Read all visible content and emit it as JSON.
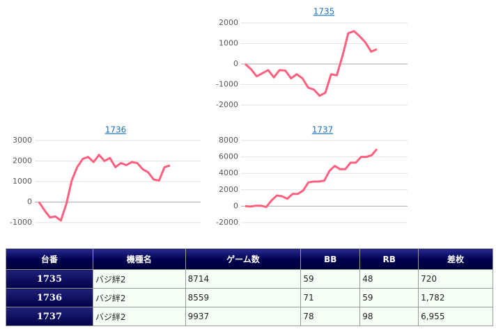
{
  "chart_data": [
    {
      "type": "line",
      "title": "1735",
      "color": "#ff5f7e",
      "grid": true,
      "values": [
        0,
        -250,
        -600,
        -450,
        -300,
        -650,
        -300,
        -320,
        -700,
        -500,
        -700,
        -1150,
        -1250,
        -1550,
        -1400,
        -500,
        -550,
        400,
        1500,
        1600,
        1350,
        1050,
        600,
        720
      ],
      "ylim": [
        -2000,
        2000
      ],
      "yticks": [
        -2000,
        -1000,
        0,
        1000,
        2000
      ]
    },
    {
      "type": "line",
      "title": "1736",
      "color": "#ff5f7e",
      "grid": true,
      "values": [
        0,
        -400,
        -750,
        -700,
        -900,
        -100,
        1050,
        1700,
        2100,
        2200,
        1950,
        2300,
        2000,
        2150,
        1700,
        1900,
        1800,
        1950,
        1900,
        1600,
        1450,
        1100,
        1050,
        1700,
        1782
      ],
      "ylim": [
        -1000,
        3000
      ],
      "yticks": [
        -1000,
        0,
        1000,
        2000,
        3000
      ]
    },
    {
      "type": "line",
      "title": "1737",
      "color": "#ff5f7e",
      "grid": true,
      "values": [
        0,
        -50,
        50,
        50,
        -100,
        700,
        1300,
        1200,
        900,
        1500,
        1500,
        1900,
        2900,
        3000,
        3000,
        3100,
        4300,
        4900,
        4500,
        4500,
        5300,
        5300,
        6000,
        6000,
        6200,
        6955
      ],
      "ylim": [
        -2000,
        8000
      ],
      "yticks": [
        -2000,
        0,
        2000,
        4000,
        6000,
        8000
      ]
    }
  ],
  "table": {
    "header": [
      "台番",
      "機種名",
      "ゲーム数",
      "BB",
      "RB",
      "差枚"
    ],
    "rows": [
      [
        "1735",
        "バジ絆2",
        "8714",
        "59",
        "48",
        "720"
      ],
      [
        "1736",
        "バジ絆2",
        "8559",
        "71",
        "59",
        "1,782"
      ],
      [
        "1737",
        "バジ絆2",
        "9937",
        "78",
        "98",
        "6,955"
      ]
    ]
  }
}
